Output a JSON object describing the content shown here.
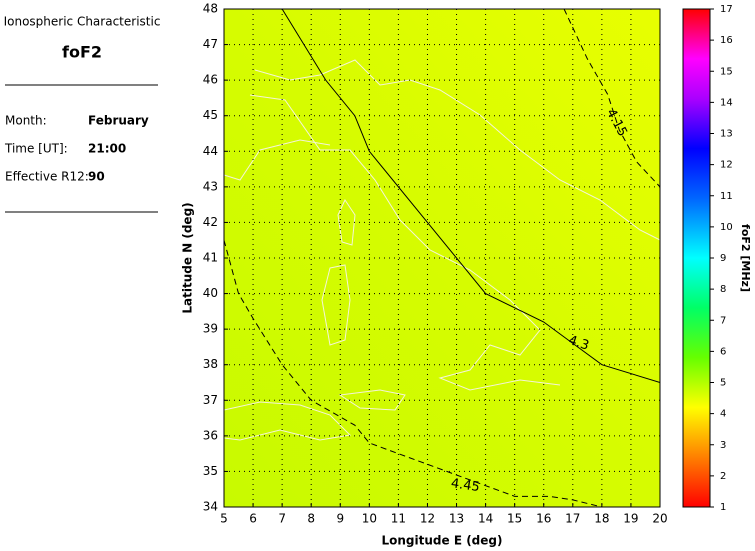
{
  "panel": {
    "title": "Ionospheric Characteristic",
    "parameter": "foF2",
    "fields": [
      {
        "label": "Month:",
        "value": "February"
      },
      {
        "label": "Time [UT]:",
        "value": "21:00"
      },
      {
        "label": "Effective R12:",
        "value": "90"
      }
    ]
  },
  "chart_data": {
    "type": "contour",
    "x_label": "Longitude E (deg)",
    "y_label": "Latitude N (deg)",
    "xlim": [
      5,
      20
    ],
    "ylim": [
      34,
      48
    ],
    "xticks": [
      5,
      6,
      7,
      8,
      9,
      10,
      11,
      12,
      13,
      14,
      15,
      16,
      17,
      18,
      19,
      20
    ],
    "yticks": [
      34,
      35,
      36,
      37,
      38,
      39,
      40,
      41,
      42,
      43,
      44,
      45,
      46,
      47,
      48
    ],
    "grid": true,
    "colorbar": {
      "label": "foF2 [MHz]",
      "lim": [
        1,
        17
      ],
      "ticks": [
        1,
        2,
        3,
        4,
        5,
        6,
        7,
        8,
        9,
        10,
        11,
        12,
        13,
        14,
        15,
        16,
        17
      ]
    },
    "contours": [
      {
        "level": 4.15,
        "style": "dashed",
        "lon": [
          16.7,
          17.5,
          18.2,
          18.6,
          19.2,
          20
        ],
        "lat": [
          48,
          46.6,
          45.6,
          44.6,
          43.7,
          43
        ],
        "label_at": [
          18.5,
          44.8
        ],
        "label_angle": 62
      },
      {
        "level": 4.3,
        "style": "solid",
        "lon": [
          7,
          8.5,
          9.5,
          10,
          12,
          14,
          16,
          17,
          18,
          20
        ],
        "lat": [
          48,
          46,
          45,
          44,
          42,
          40,
          39.2,
          38.6,
          38,
          37.5
        ],
        "label_at": [
          17.2,
          38.6
        ],
        "label_angle": 18
      },
      {
        "level": 4.45,
        "style": "dashed",
        "lon": [
          5,
          5.5,
          6,
          7,
          8,
          9.5,
          10,
          12,
          14,
          15,
          16.2,
          17,
          18
        ],
        "lat": [
          41.5,
          40,
          39.3,
          38,
          37,
          36.3,
          35.8,
          35.2,
          34.6,
          34.3,
          34.3,
          34.2,
          34
        ],
        "label_at": [
          13.3,
          34.6
        ],
        "label_angle": 8
      }
    ]
  }
}
